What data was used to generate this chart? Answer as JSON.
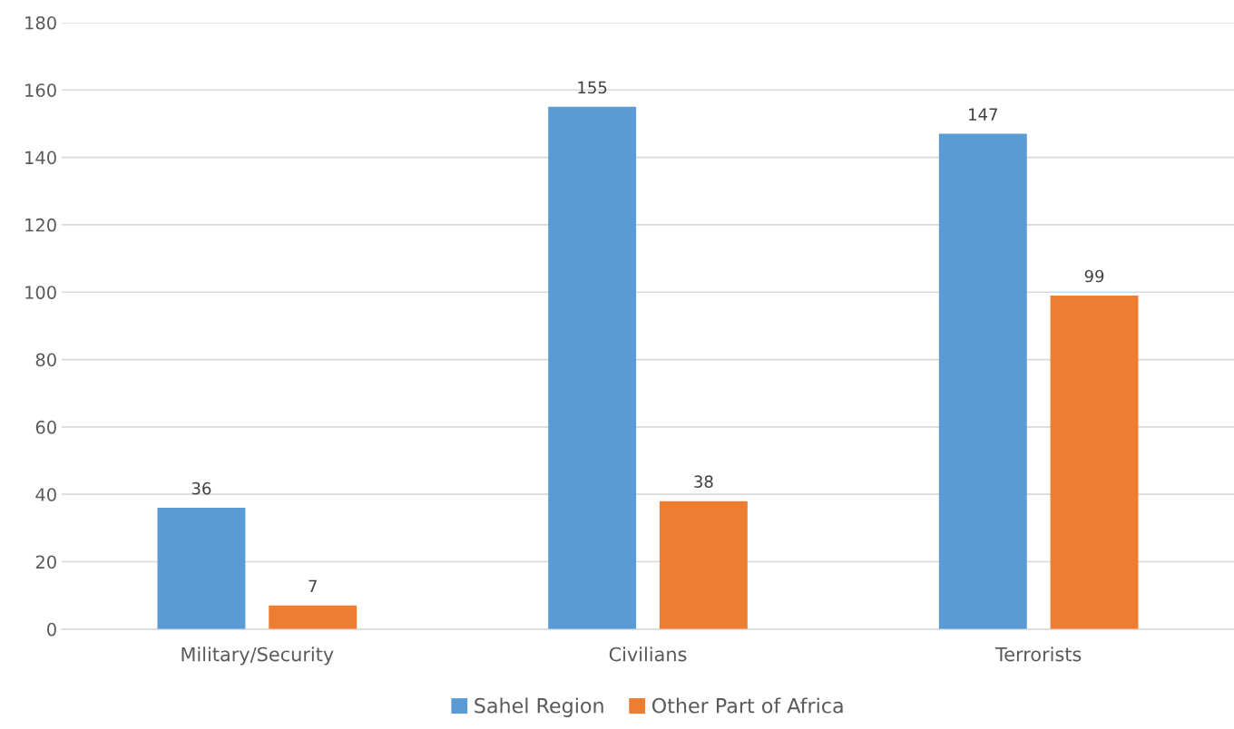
{
  "chart_data": {
    "type": "bar",
    "categories": [
      "Military/Security",
      "Civilians",
      "Terrorists"
    ],
    "series": [
      {
        "name": "Sahel Region",
        "color": "#5b9bd5",
        "values": [
          36,
          155,
          147
        ]
      },
      {
        "name": "Other Part of Africa",
        "color": "#ed7d31",
        "values": [
          7,
          38,
          99
        ]
      }
    ],
    "ylim": [
      0,
      180
    ],
    "yticks": [
      0,
      20,
      40,
      60,
      80,
      100,
      120,
      140,
      160,
      180
    ],
    "grid": "y",
    "legend": "bottom",
    "data_labels": true
  }
}
